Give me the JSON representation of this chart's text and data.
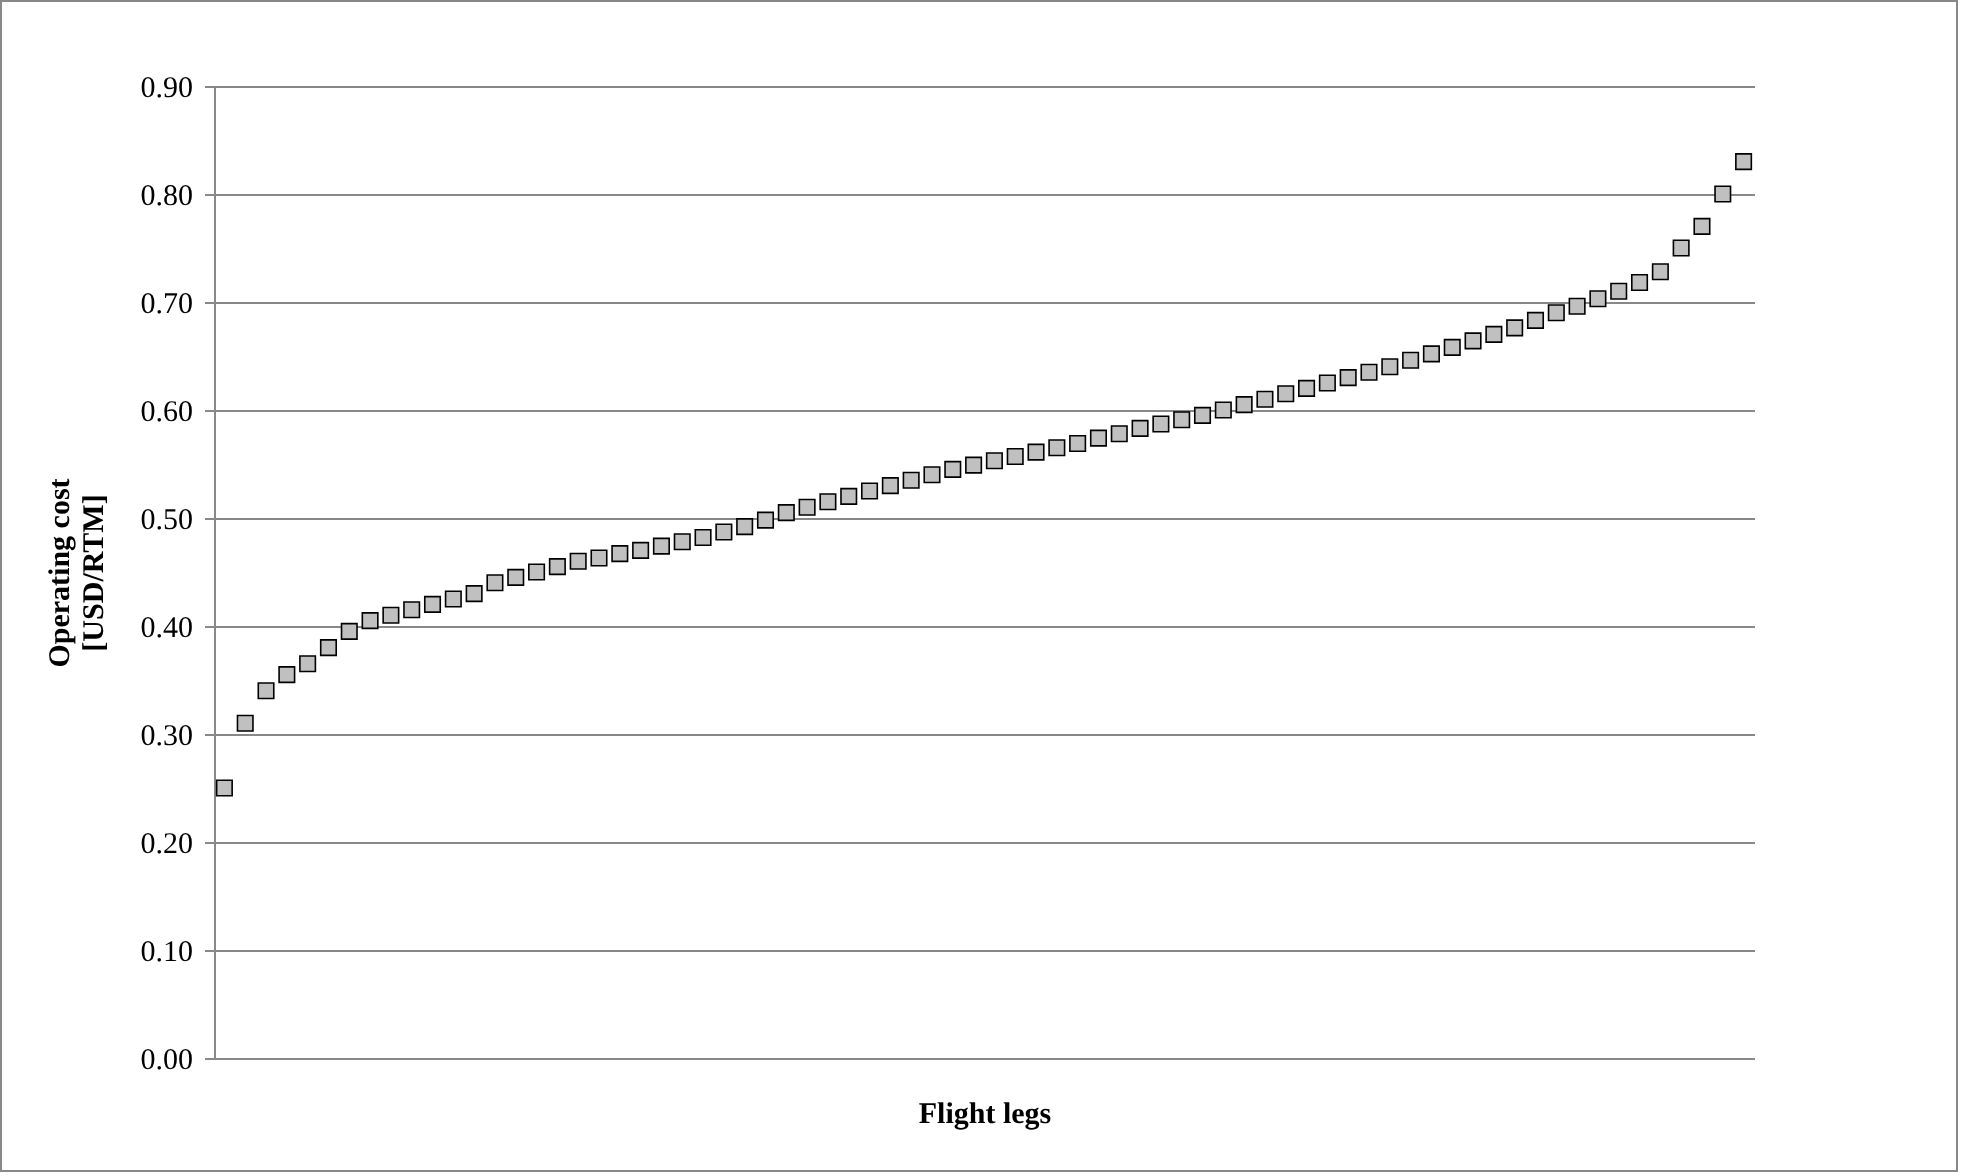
{
  "chart_data": {
    "type": "scatter",
    "xlabel": "Flight legs",
    "ylabel": "Operating cost\n[USD/RTM]",
    "categories": [
      null,
      null,
      null,
      null,
      null,
      null,
      null,
      null,
      null,
      null,
      null,
      null,
      null,
      null,
      null,
      null,
      null,
      null,
      null,
      null,
      null,
      null,
      null,
      null,
      null,
      null,
      null,
      null,
      null,
      null,
      null,
      null,
      null,
      null,
      null,
      null,
      null,
      null,
      null,
      null,
      null,
      null,
      null,
      null,
      null,
      null,
      null,
      null,
      null,
      null,
      null,
      null,
      null,
      null,
      null,
      null,
      null,
      null,
      null,
      null,
      null,
      null,
      null,
      null,
      null,
      null,
      null,
      null,
      null,
      null,
      null,
      null,
      null,
      null
    ],
    "series": [
      {
        "color": "#c0c0c0",
        "values": [
          0.25,
          0.31,
          0.34,
          0.355,
          0.365,
          0.38,
          0.395,
          0.405,
          0.41,
          0.415,
          0.42,
          0.425,
          0.43,
          0.44,
          0.445,
          0.45,
          0.455,
          0.46,
          0.463,
          0.467,
          0.47,
          0.474,
          0.478,
          0.482,
          0.487,
          0.492,
          0.498,
          0.505,
          0.51,
          0.515,
          0.52,
          0.525,
          0.53,
          0.535,
          0.54,
          0.545,
          0.549,
          0.553,
          0.557,
          0.561,
          0.565,
          0.569,
          0.574,
          0.578,
          0.583,
          0.587,
          0.591,
          0.595,
          0.6,
          0.605,
          0.61,
          0.615,
          0.62,
          0.625,
          0.63,
          0.635,
          0.64,
          0.646,
          0.652,
          0.658,
          0.664,
          0.67,
          0.676,
          0.683,
          0.69,
          0.696,
          0.703,
          0.71,
          0.718,
          0.728,
          0.75,
          0.77,
          0.8,
          0.83
        ]
      }
    ],
    "ylim": [
      0,
      0.9
    ],
    "yticks": [
      {
        "value": 0,
        "label": "0.00"
      },
      {
        "value": 0.1,
        "label": "0.10"
      },
      {
        "value": 0.2,
        "label": "0.20"
      },
      {
        "value": 0.3,
        "label": "0.30"
      },
      {
        "value": 0.4,
        "label": "0.40"
      },
      {
        "value": 0.5,
        "label": "0.50"
      },
      {
        "value": 0.6,
        "label": "0.60"
      },
      {
        "value": 0.7,
        "label": "0.70"
      },
      {
        "value": 0.8,
        "label": "0.80"
      },
      {
        "value": 0.9,
        "label": "0.90"
      }
    ],
    "tick_labels": "y",
    "grid": "y",
    "marker": "square",
    "legend": false
  }
}
